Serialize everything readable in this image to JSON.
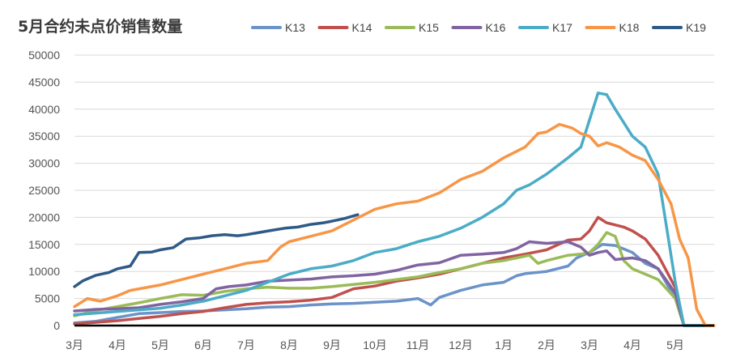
{
  "chart_data": {
    "type": "line",
    "title": "5月合约未点价销售数量",
    "xlabel": "",
    "ylabel": "",
    "ylim": [
      0,
      50000
    ],
    "yticks": [
      0,
      5000,
      10000,
      15000,
      20000,
      25000,
      30000,
      35000,
      40000,
      45000,
      50000
    ],
    "x_tick_labels": [
      "3月",
      "4月",
      "5月",
      "6月",
      "7月",
      "8月",
      "9月",
      "10月",
      "11月",
      "12月",
      "1月",
      "2月",
      "3月",
      "4月",
      "5月"
    ],
    "x_range": [
      0,
      14.9
    ],
    "legend_position": "top",
    "grid": true,
    "series": [
      {
        "name": "K13",
        "color": "#6b93c9",
        "points": [
          [
            0,
            500
          ],
          [
            0.5,
            800
          ],
          [
            1,
            1500
          ],
          [
            1.5,
            2200
          ],
          [
            2,
            2400
          ],
          [
            2.5,
            2600
          ],
          [
            3,
            2700
          ],
          [
            3.5,
            2900
          ],
          [
            4,
            3100
          ],
          [
            4.5,
            3400
          ],
          [
            5,
            3500
          ],
          [
            5.5,
            3800
          ],
          [
            6,
            4000
          ],
          [
            6.5,
            4100
          ],
          [
            7,
            4300
          ],
          [
            7.5,
            4500
          ],
          [
            8,
            5000
          ],
          [
            8.3,
            3800
          ],
          [
            8.5,
            5200
          ],
          [
            9,
            6500
          ],
          [
            9.5,
            7500
          ],
          [
            10,
            8000
          ],
          [
            10.3,
            9200
          ],
          [
            10.5,
            9600
          ],
          [
            11,
            10000
          ],
          [
            11.5,
            11000
          ],
          [
            11.7,
            12500
          ],
          [
            12,
            13500
          ],
          [
            12.3,
            15000
          ],
          [
            12.6,
            14800
          ],
          [
            13,
            13500
          ],
          [
            13.3,
            11500
          ],
          [
            13.6,
            10500
          ],
          [
            14,
            5000
          ],
          [
            14.2,
            0
          ],
          [
            14.9,
            0
          ]
        ]
      },
      {
        "name": "K14",
        "color": "#c0504d",
        "points": [
          [
            0,
            300
          ],
          [
            0.5,
            600
          ],
          [
            1,
            900
          ],
          [
            1.5,
            1300
          ],
          [
            2,
            1700
          ],
          [
            2.5,
            2200
          ],
          [
            3,
            2600
          ],
          [
            3.5,
            3300
          ],
          [
            4,
            3900
          ],
          [
            4.5,
            4200
          ],
          [
            5,
            4400
          ],
          [
            5.5,
            4700
          ],
          [
            6,
            5200
          ],
          [
            6.5,
            6800
          ],
          [
            7,
            7300
          ],
          [
            7.5,
            8200
          ],
          [
            8,
            8800
          ],
          [
            8.5,
            9500
          ],
          [
            9,
            10500
          ],
          [
            9.5,
            11500
          ],
          [
            10,
            12500
          ],
          [
            10.5,
            13200
          ],
          [
            11,
            14000
          ],
          [
            11.5,
            15800
          ],
          [
            11.8,
            16000
          ],
          [
            12,
            17500
          ],
          [
            12.2,
            20000
          ],
          [
            12.4,
            19000
          ],
          [
            12.8,
            18200
          ],
          [
            13,
            17500
          ],
          [
            13.3,
            16000
          ],
          [
            13.6,
            13000
          ],
          [
            14,
            7000
          ],
          [
            14.2,
            0
          ],
          [
            14.9,
            0
          ]
        ]
      },
      {
        "name": "K15",
        "color": "#9bbb59",
        "points": [
          [
            0,
            1800
          ],
          [
            0.5,
            2800
          ],
          [
            1,
            3500
          ],
          [
            1.5,
            4200
          ],
          [
            2,
            5000
          ],
          [
            2.5,
            5700
          ],
          [
            3,
            5600
          ],
          [
            3.5,
            6300
          ],
          [
            4,
            6800
          ],
          [
            4.5,
            7100
          ],
          [
            5,
            6900
          ],
          [
            5.5,
            6900
          ],
          [
            6,
            7200
          ],
          [
            6.5,
            7600
          ],
          [
            7,
            8000
          ],
          [
            7.5,
            8500
          ],
          [
            8,
            9000
          ],
          [
            8.5,
            9800
          ],
          [
            9,
            10500
          ],
          [
            9.5,
            11500
          ],
          [
            10,
            12000
          ],
          [
            10.3,
            12500
          ],
          [
            10.6,
            13000
          ],
          [
            10.8,
            11500
          ],
          [
            11,
            12000
          ],
          [
            11.5,
            13000
          ],
          [
            11.8,
            13200
          ],
          [
            12,
            13500
          ],
          [
            12.2,
            15000
          ],
          [
            12.4,
            17200
          ],
          [
            12.6,
            16500
          ],
          [
            12.8,
            12000
          ],
          [
            13,
            10500
          ],
          [
            13.3,
            9500
          ],
          [
            13.6,
            8500
          ],
          [
            14,
            5000
          ],
          [
            14.2,
            0
          ],
          [
            14.9,
            0
          ]
        ]
      },
      {
        "name": "K16",
        "color": "#8064a2",
        "points": [
          [
            0,
            2700
          ],
          [
            0.5,
            3000
          ],
          [
            1,
            3100
          ],
          [
            1.5,
            3300
          ],
          [
            2,
            3900
          ],
          [
            2.5,
            4400
          ],
          [
            3,
            5000
          ],
          [
            3.3,
            6800
          ],
          [
            3.6,
            7200
          ],
          [
            4,
            7500
          ],
          [
            4.5,
            8200
          ],
          [
            5,
            8400
          ],
          [
            5.5,
            8600
          ],
          [
            6,
            9000
          ],
          [
            6.5,
            9200
          ],
          [
            7,
            9500
          ],
          [
            7.5,
            10200
          ],
          [
            8,
            11200
          ],
          [
            8.5,
            11600
          ],
          [
            9,
            13000
          ],
          [
            9.5,
            13200
          ],
          [
            10,
            13500
          ],
          [
            10.3,
            14200
          ],
          [
            10.6,
            15500
          ],
          [
            11,
            15200
          ],
          [
            11.5,
            15500
          ],
          [
            11.8,
            14500
          ],
          [
            12,
            13000
          ],
          [
            12.2,
            13500
          ],
          [
            12.4,
            13800
          ],
          [
            12.6,
            12200
          ],
          [
            13,
            12500
          ],
          [
            13.3,
            12000
          ],
          [
            13.6,
            10500
          ],
          [
            14,
            6000
          ],
          [
            14.2,
            0
          ],
          [
            14.9,
            0
          ]
        ]
      },
      {
        "name": "K17",
        "color": "#4bacc6",
        "points": [
          [
            0,
            2000
          ],
          [
            0.5,
            2300
          ],
          [
            1,
            2600
          ],
          [
            1.5,
            2900
          ],
          [
            2,
            3200
          ],
          [
            2.5,
            3800
          ],
          [
            3,
            4500
          ],
          [
            3.5,
            5500
          ],
          [
            4,
            6500
          ],
          [
            4.5,
            8000
          ],
          [
            5,
            9500
          ],
          [
            5.5,
            10500
          ],
          [
            6,
            11000
          ],
          [
            6.5,
            12000
          ],
          [
            7,
            13500
          ],
          [
            7.5,
            14200
          ],
          [
            8,
            15500
          ],
          [
            8.5,
            16500
          ],
          [
            9,
            18000
          ],
          [
            9.5,
            20000
          ],
          [
            10,
            22500
          ],
          [
            10.3,
            25000
          ],
          [
            10.6,
            26000
          ],
          [
            11,
            28000
          ],
          [
            11.5,
            31000
          ],
          [
            11.8,
            33000
          ],
          [
            12,
            38000
          ],
          [
            12.2,
            43000
          ],
          [
            12.4,
            42700
          ],
          [
            12.6,
            40000
          ],
          [
            13,
            35000
          ],
          [
            13.3,
            33000
          ],
          [
            13.6,
            28000
          ],
          [
            14,
            8000
          ],
          [
            14.2,
            0
          ],
          [
            14.9,
            0
          ]
        ]
      },
      {
        "name": "K18",
        "color": "#f79646",
        "points": [
          [
            0,
            3500
          ],
          [
            0.3,
            5000
          ],
          [
            0.6,
            4500
          ],
          [
            1,
            5500
          ],
          [
            1.3,
            6500
          ],
          [
            2,
            7500
          ],
          [
            2.5,
            8500
          ],
          [
            3,
            9500
          ],
          [
            3.5,
            10500
          ],
          [
            4,
            11500
          ],
          [
            4.5,
            12000
          ],
          [
            4.8,
            14500
          ],
          [
            5,
            15500
          ],
          [
            5.5,
            16500
          ],
          [
            6,
            17500
          ],
          [
            6.5,
            19500
          ],
          [
            7,
            21500
          ],
          [
            7.5,
            22500
          ],
          [
            8,
            23000
          ],
          [
            8.5,
            24500
          ],
          [
            9,
            27000
          ],
          [
            9.5,
            28500
          ],
          [
            10,
            31000
          ],
          [
            10.5,
            33000
          ],
          [
            10.8,
            35500
          ],
          [
            11,
            35800
          ],
          [
            11.3,
            37200
          ],
          [
            11.6,
            36500
          ],
          [
            11.8,
            35500
          ],
          [
            12,
            35000
          ],
          [
            12.2,
            33200
          ],
          [
            12.4,
            33800
          ],
          [
            12.7,
            33000
          ],
          [
            13,
            31500
          ],
          [
            13.3,
            30500
          ],
          [
            13.6,
            27000
          ],
          [
            13.9,
            22500
          ],
          [
            14.1,
            16000
          ],
          [
            14.3,
            12500
          ],
          [
            14.5,
            3000
          ],
          [
            14.7,
            0
          ],
          [
            14.9,
            0
          ]
        ]
      },
      {
        "name": "K19",
        "color": "#2e5a87",
        "points": [
          [
            0,
            7200
          ],
          [
            0.2,
            8300
          ],
          [
            0.5,
            9300
          ],
          [
            0.8,
            9800
          ],
          [
            1,
            10500
          ],
          [
            1.3,
            11000
          ],
          [
            1.5,
            13500
          ],
          [
            1.8,
            13600
          ],
          [
            2,
            14000
          ],
          [
            2.3,
            14400
          ],
          [
            2.6,
            16000
          ],
          [
            2.9,
            16200
          ],
          [
            3.2,
            16600
          ],
          [
            3.5,
            16800
          ],
          [
            3.8,
            16600
          ],
          [
            4,
            16800
          ],
          [
            4.3,
            17200
          ],
          [
            4.6,
            17600
          ],
          [
            4.9,
            18000
          ],
          [
            5.2,
            18200
          ],
          [
            5.5,
            18700
          ],
          [
            5.8,
            19000
          ],
          [
            6,
            19300
          ],
          [
            6.3,
            19800
          ],
          [
            6.6,
            20500
          ]
        ]
      }
    ]
  }
}
